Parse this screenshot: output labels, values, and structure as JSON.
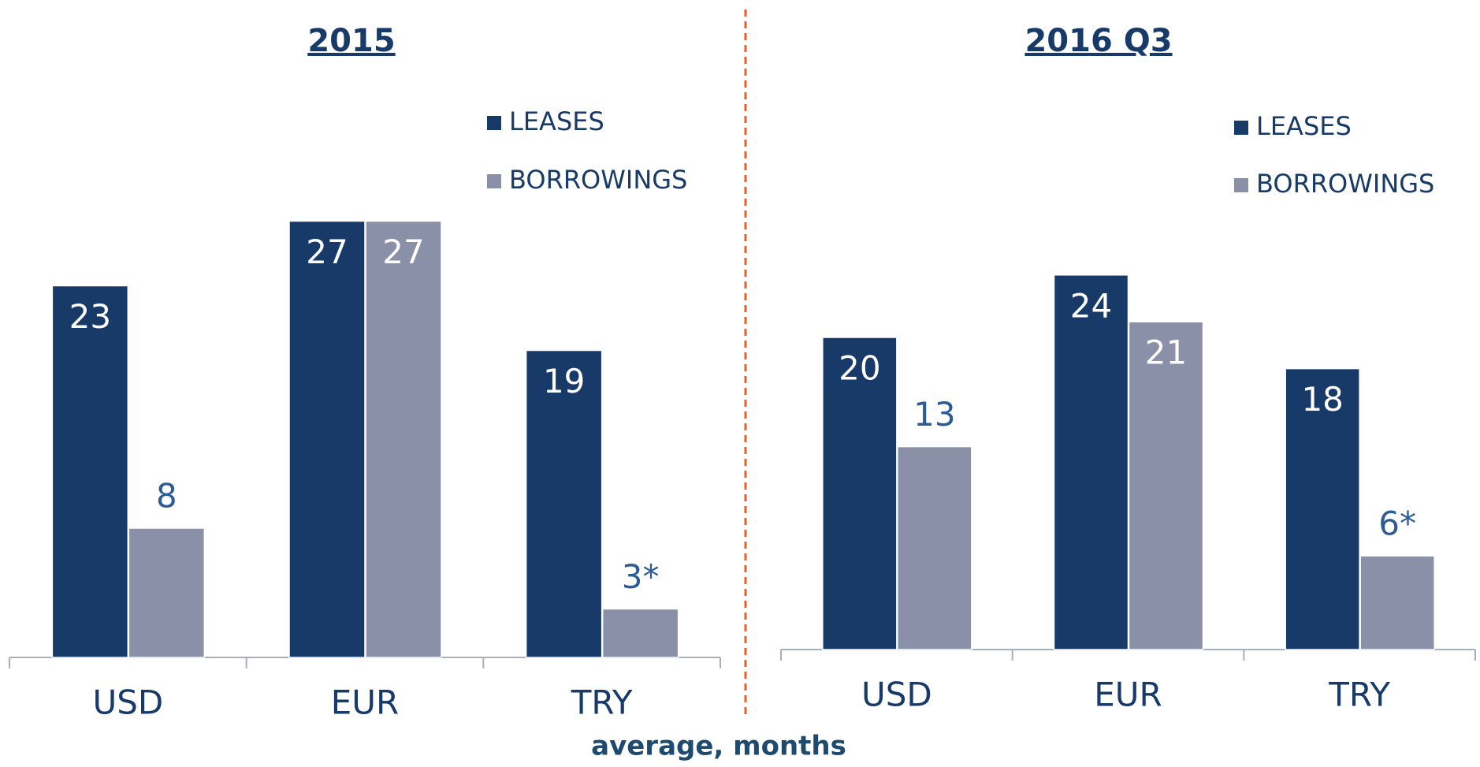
{
  "chart_data": [
    {
      "type": "bar",
      "title": "2015",
      "categories": [
        "USD",
        "EUR",
        "TRY"
      ],
      "series": [
        {
          "name": "LEASES",
          "color": "#183a69",
          "values": [
            23,
            27,
            19
          ]
        },
        {
          "name": "BORROWINGS",
          "color": "#8990a8",
          "values": [
            8,
            27,
            3
          ],
          "value_labels": [
            "8",
            "27",
            "3*"
          ]
        }
      ]
    },
    {
      "type": "bar",
      "title": "2016 Q3",
      "categories": [
        "USD",
        "EUR",
        "TRY"
      ],
      "series": [
        {
          "name": "LEASES",
          "color": "#183a69",
          "values": [
            20,
            24,
            18
          ]
        },
        {
          "name": "BORROWINGS",
          "color": "#8990a8",
          "values": [
            13,
            21,
            6
          ],
          "value_labels": [
            "13",
            "21",
            "6*"
          ]
        }
      ]
    }
  ],
  "caption": "average, months"
}
